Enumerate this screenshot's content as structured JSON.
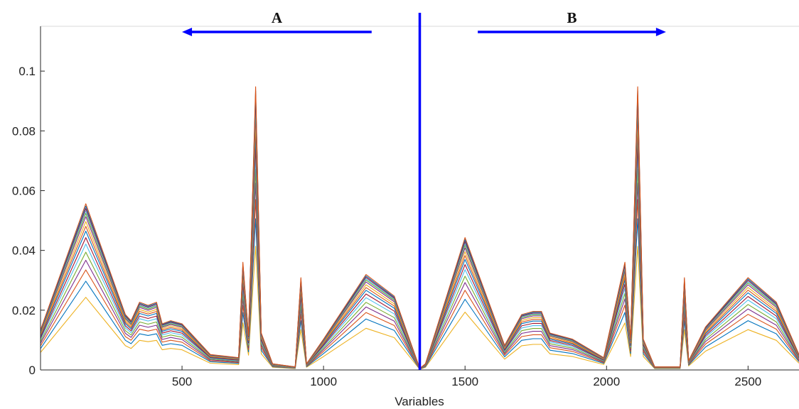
{
  "chart_data": {
    "type": "line",
    "title": "",
    "xlabel": "Variables",
    "ylabel": "",
    "xlim": [
      0,
      2680
    ],
    "ylim": [
      0,
      0.115
    ],
    "grid": false,
    "legend": "none",
    "x_ticks": [
      500,
      1000,
      1500,
      2000,
      2500
    ],
    "x_tick_labels": [
      "500",
      "1000",
      "1500",
      "2000",
      "2500"
    ],
    "y_ticks": [
      0,
      0.02,
      0.04,
      0.06,
      0.08,
      0.1
    ],
    "y_tick_labels": [
      "0",
      "0.02",
      "0.04",
      "0.06",
      "0.08",
      "0.1"
    ],
    "annotations": {
      "divider_x": 1340,
      "region_a": {
        "label": "A",
        "arrow_from": 1170,
        "arrow_to": 500,
        "direction": "left"
      },
      "region_b": {
        "label": "B",
        "arrow_from": 1545,
        "arrow_to": 2210,
        "direction": "right"
      },
      "color": "#0000ff"
    },
    "reference_series": {
      "x": [
        0,
        160,
        300,
        320,
        350,
        380,
        410,
        430,
        460,
        500,
        530,
        600,
        700,
        715,
        735,
        760,
        780,
        820,
        900,
        920,
        940,
        1000,
        1150,
        1250,
        1340,
        1360,
        1500,
        1640,
        1700,
        1740,
        1770,
        1800,
        1880,
        1990,
        2065,
        2085,
        2110,
        2130,
        2170,
        2260,
        2275,
        2290,
        2350,
        2500,
        2600,
        2680
      ],
      "y": [
        0.013,
        0.054,
        0.018,
        0.016,
        0.022,
        0.021,
        0.022,
        0.015,
        0.016,
        0.015,
        0.012,
        0.005,
        0.004,
        0.035,
        0.011,
        0.092,
        0.012,
        0.002,
        0.001,
        0.03,
        0.002,
        0.01,
        0.031,
        0.024,
        0.0005,
        0.002,
        0.043,
        0.008,
        0.018,
        0.019,
        0.019,
        0.012,
        0.01,
        0.004,
        0.035,
        0.01,
        0.092,
        0.01,
        0.001,
        0.001,
        0.03,
        0.003,
        0.014,
        0.03,
        0.022,
        0.005
      ]
    },
    "series_scales": [
      0.45,
      0.55,
      0.62,
      0.68,
      0.73,
      0.78,
      0.82,
      0.86,
      0.89,
      0.92,
      0.95,
      0.97,
      0.985,
      1.0,
      1.015,
      1.03
    ],
    "series_colors": [
      "#EDB120",
      "#0072BD",
      "#D95319",
      "#7E2F8E",
      "#77AC30",
      "#4DBEEE",
      "#A2142F",
      "#0072BD",
      "#D95319",
      "#EDB120",
      "#7E2F8E",
      "#77AC30",
      "#4DBEEE",
      "#A2142F",
      "#0072BD",
      "#D95319"
    ]
  }
}
